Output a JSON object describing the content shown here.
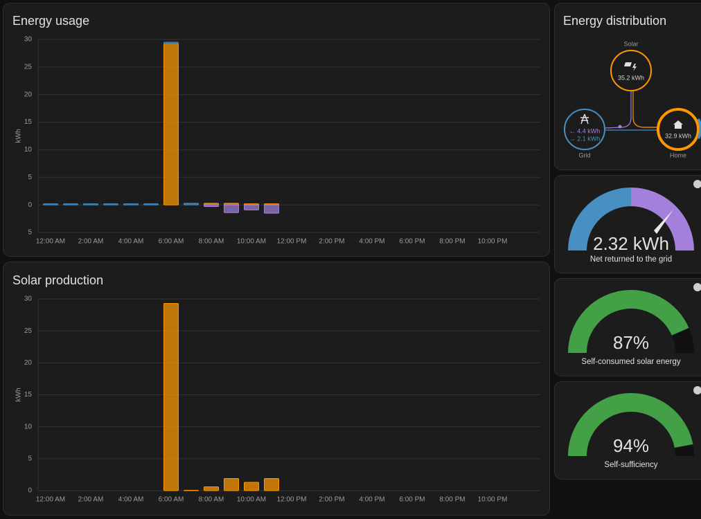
{
  "chart_data": [
    {
      "type": "bar",
      "title": "Energy usage",
      "y_label": "kWh",
      "categories": [
        "12:00 AM",
        null,
        "2:00 AM",
        null,
        "4:00 AM",
        null,
        "6:00 AM",
        null,
        "8:00 AM",
        null,
        "10:00 AM",
        null,
        "12:00 PM",
        null,
        "2:00 PM",
        null,
        "4:00 PM",
        null,
        "6:00 PM",
        null,
        "8:00 PM",
        null,
        "10:00 PM",
        null
      ],
      "series": [
        {
          "color": "#ff9800",
          "values": [
            0,
            0,
            0,
            0,
            0,
            0,
            29.2,
            0,
            0.3,
            0.3,
            0.2,
            0.2,
            null,
            null,
            null,
            null,
            null,
            null,
            null,
            null,
            null,
            null,
            null,
            null
          ]
        },
        {
          "color": "#488fc2",
          "values": [
            0.2,
            0.2,
            0.2,
            0.2,
            0.2,
            0.2,
            0.3,
            0.3,
            0,
            0,
            0,
            0,
            null,
            null,
            null,
            null,
            null,
            null,
            null,
            null,
            null,
            null,
            null,
            null
          ]
        },
        {
          "color": "#a280db",
          "values": [
            0,
            0,
            0,
            0,
            0,
            0,
            0,
            0,
            -0.3,
            -1.4,
            -0.9,
            -1.5,
            null,
            null,
            null,
            null,
            null,
            null,
            null,
            null,
            null,
            null,
            null,
            null
          ]
        }
      ],
      "ylim": [
        -5,
        30
      ],
      "yticks": [
        {
          "value": -5,
          "label": "5"
        },
        0,
        5,
        10,
        15,
        20,
        25,
        30
      ],
      "grid": true
    },
    {
      "type": "bar",
      "title": "Solar production",
      "y_label": "kWh",
      "categories": [
        "12:00 AM",
        null,
        "2:00 AM",
        null,
        "4:00 AM",
        null,
        "6:00 AM",
        null,
        "8:00 AM",
        null,
        "10:00 AM",
        null,
        "12:00 PM",
        null,
        "2:00 PM",
        null,
        "4:00 PM",
        null,
        "6:00 PM",
        null,
        "8:00 PM",
        null,
        "10:00 PM",
        null
      ],
      "series": [
        {
          "color": "#ff9800",
          "values": [
            0,
            0,
            0,
            0,
            0,
            0,
            29.3,
            0.05,
            0.6,
            1.9,
            1.3,
            1.9,
            null,
            null,
            null,
            null,
            null,
            null,
            null,
            null,
            null,
            null,
            null,
            null
          ]
        }
      ],
      "ylim": [
        0,
        30
      ],
      "yticks": [
        0,
        5,
        10,
        15,
        20,
        25,
        30
      ],
      "grid": true
    }
  ],
  "distribution": {
    "title": "Energy distribution",
    "solar": {
      "label": "Solar",
      "value": "35.2 kWh"
    },
    "grid": {
      "label": "Grid",
      "from": "← 4.4 kWh",
      "to": "→ 2.1 kWh"
    },
    "home": {
      "label": "Home",
      "value": "32.9 kWh"
    }
  },
  "gauges": [
    {
      "value": "2.32 kWh",
      "label": "Net returned to the grid"
    },
    {
      "value": 87,
      "value_label": "87%",
      "label": "Self-consumed solar energy"
    },
    {
      "value": 94,
      "value_label": "94%",
      "label": "Self-sufficiency"
    }
  ]
}
